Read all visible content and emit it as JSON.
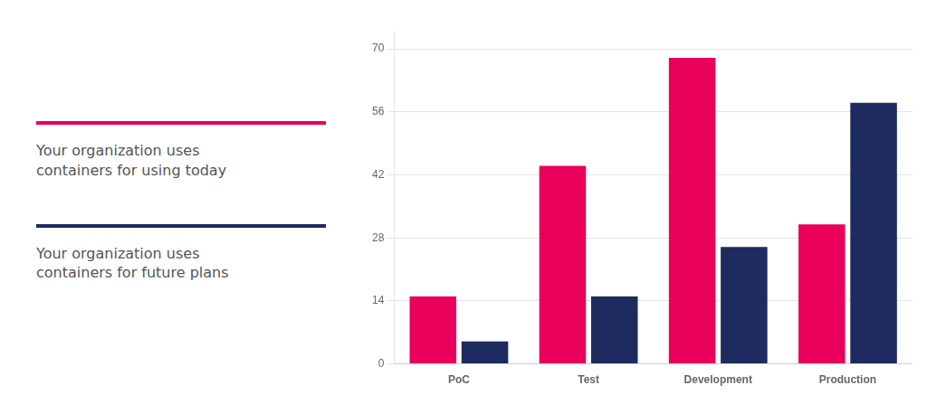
{
  "chart_data": {
    "type": "bar",
    "categories": [
      "PoC",
      "Test",
      "Development",
      "Production"
    ],
    "series": [
      {
        "name": "Your organization uses\ncontainers for using today",
        "color": "#E8005A",
        "values": [
          15,
          44,
          68,
          31
        ]
      },
      {
        "name": "Your organization uses\ncontainers for future plans",
        "color": "#1E2B5E",
        "values": [
          5,
          15,
          26,
          58
        ]
      }
    ],
    "ylim": [
      0,
      74
    ],
    "yticks": [
      0,
      14,
      28,
      42,
      56,
      70
    ],
    "grid": true,
    "legend": "left"
  }
}
